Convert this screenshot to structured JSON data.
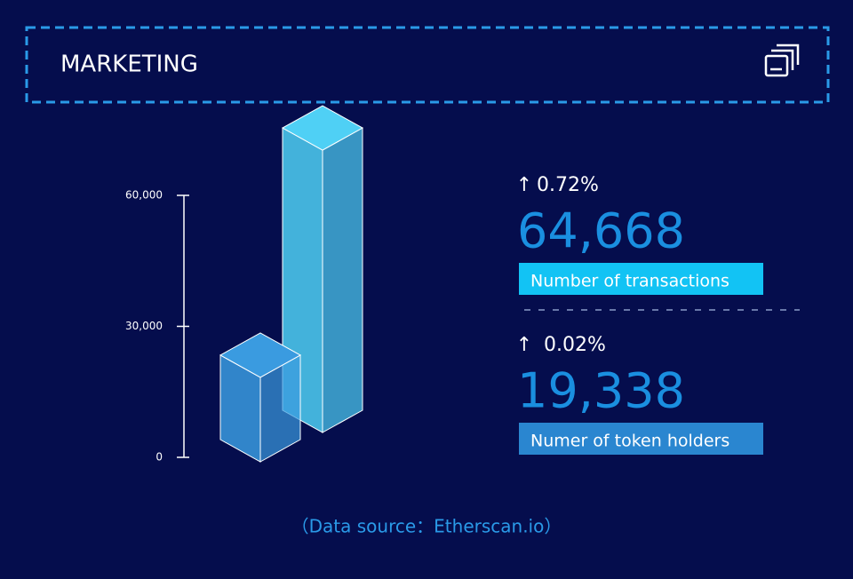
{
  "header": {
    "title": "MARKETING"
  },
  "chart_data": {
    "type": "bar",
    "categories": [
      "Numer of token holders",
      "Number of  transactions"
    ],
    "values": [
      19338,
      64668
    ],
    "value_labels": [
      "19,338",
      "64,668"
    ],
    "changes": [
      "0.02%",
      "0.72%"
    ],
    "ylim": [
      0,
      60000
    ],
    "yticks": [
      0,
      {
        "value": 30000,
        "label": "30,000"
      },
      {
        "value": 60000,
        "label": "60,000"
      }
    ],
    "colors": [
      "#3a9be0",
      "#4fd0f5"
    ]
  },
  "source": "（Data source：Etherscan.io）"
}
